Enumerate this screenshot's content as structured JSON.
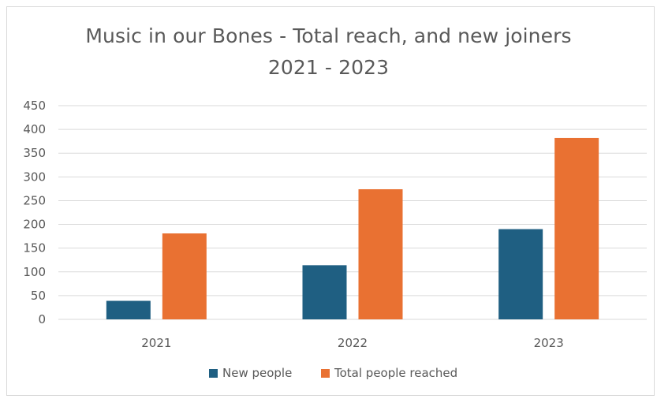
{
  "chart_data": {
    "type": "bar",
    "title_line1": "Music in our Bones - Total reach, and new joiners",
    "title_line2": "2021 - 2023",
    "categories": [
      "2021",
      "2022",
      "2023"
    ],
    "series": [
      {
        "name": "New people",
        "values": [
          39,
          114,
          190
        ],
        "color": "#1f5f82"
      },
      {
        "name": "Total people reached",
        "values": [
          181,
          274,
          382
        ],
        "color": "#e97132"
      }
    ],
    "ylim": [
      0,
      450
    ],
    "yticks": [
      0,
      50,
      100,
      150,
      200,
      250,
      300,
      350,
      400,
      450
    ],
    "grid": true,
    "legend_position": "bottom",
    "xlabel": "",
    "ylabel": ""
  }
}
